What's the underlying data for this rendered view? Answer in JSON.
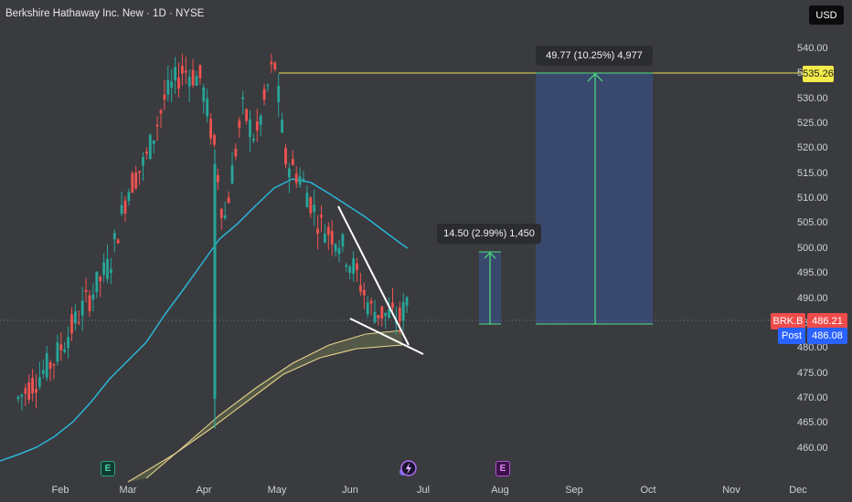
{
  "header": {
    "title": "Berkshire Hathaway Inc. New · 1D · NYSE",
    "currency_button": "USD"
  },
  "price_axis": {
    "ticks": [
      "540.00",
      "535.00",
      "530.00",
      "525.00",
      "520.00",
      "515.00",
      "510.00",
      "505.00",
      "500.00",
      "495.00",
      "490.00",
      "485.00",
      "480.00",
      "475.00",
      "470.00",
      "465.00",
      "460.00"
    ]
  },
  "time_axis": {
    "months": [
      "Feb",
      "Mar",
      "Apr",
      "May",
      "Jun",
      "Jul",
      "Aug",
      "Sep",
      "Oct",
      "Nov",
      "Dec"
    ]
  },
  "markers": {
    "target_price": "535.26",
    "symbol": "BRK.B",
    "last_price": "486.21",
    "post_label": "Post",
    "post_price": "486.08"
  },
  "measurements": {
    "small": "14.50 (2.99%) 1,450",
    "large": "49.77 (10.25%) 4,977"
  },
  "events": {
    "earnings_1": "E",
    "earnings_2": "E"
  },
  "colors": {
    "background": "#3a3b3f",
    "up": "#26a69a",
    "down": "#ef5350",
    "ma": "#2bb5d8",
    "band": "#e6d28c",
    "target_line": "#e9e04f",
    "measure_box": "#3a5aa8",
    "measure_line": "#4fe07a"
  }
}
